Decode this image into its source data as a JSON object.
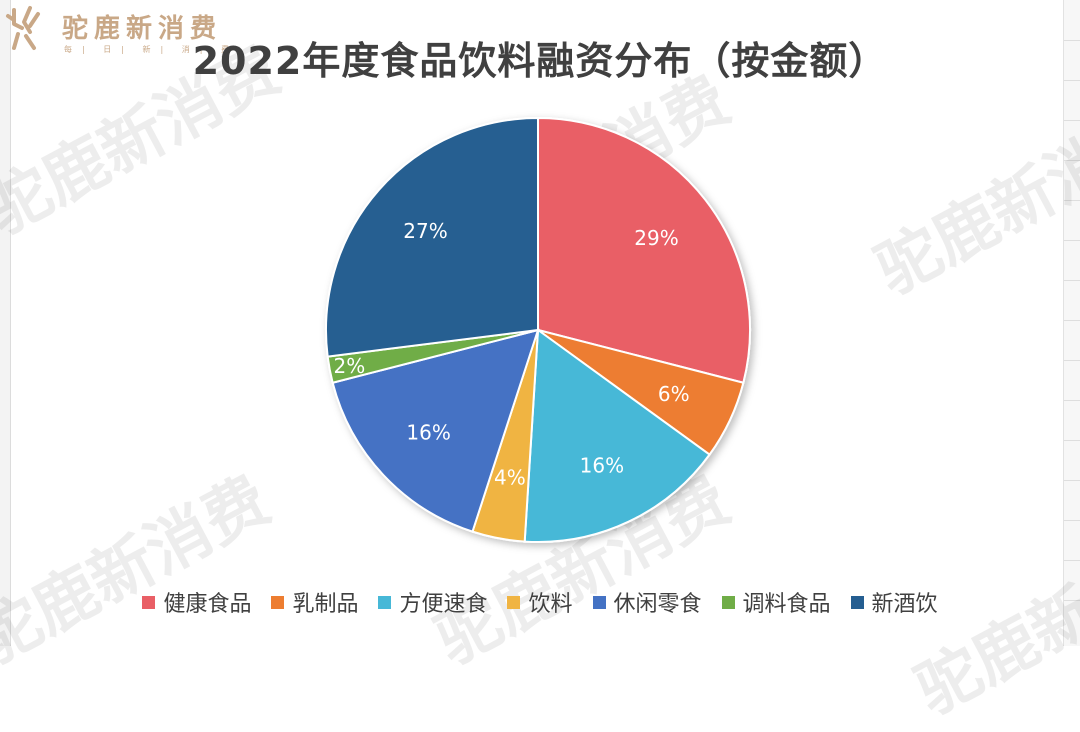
{
  "brand": {
    "name": "驼鹿新消费",
    "tagline": [
      "每",
      "日",
      "新",
      "消",
      "费"
    ],
    "color": "#c9a887"
  },
  "watermark_text": "驼鹿新消费",
  "chart_data": {
    "type": "pie",
    "title": "2022年度食品饮料融资分布（按金额）",
    "categories": [
      "健康食品",
      "乳制品",
      "方便速食",
      "饮料",
      "休闲零食",
      "调料食品",
      "新酒饮"
    ],
    "values": [
      29,
      6,
      16,
      4,
      16,
      2,
      27
    ],
    "labels": [
      "29%",
      "6%",
      "16%",
      "4%",
      "16%",
      "2%",
      "27%"
    ],
    "unit": "%",
    "colors": [
      "#e95f66",
      "#ed7d31",
      "#47b8d7",
      "#f0b442",
      "#4472c4",
      "#70ad47",
      "#255e91"
    ],
    "start_angle_deg": 0,
    "direction": "clockwise",
    "legend": "bottom",
    "data_labels": "inside"
  }
}
